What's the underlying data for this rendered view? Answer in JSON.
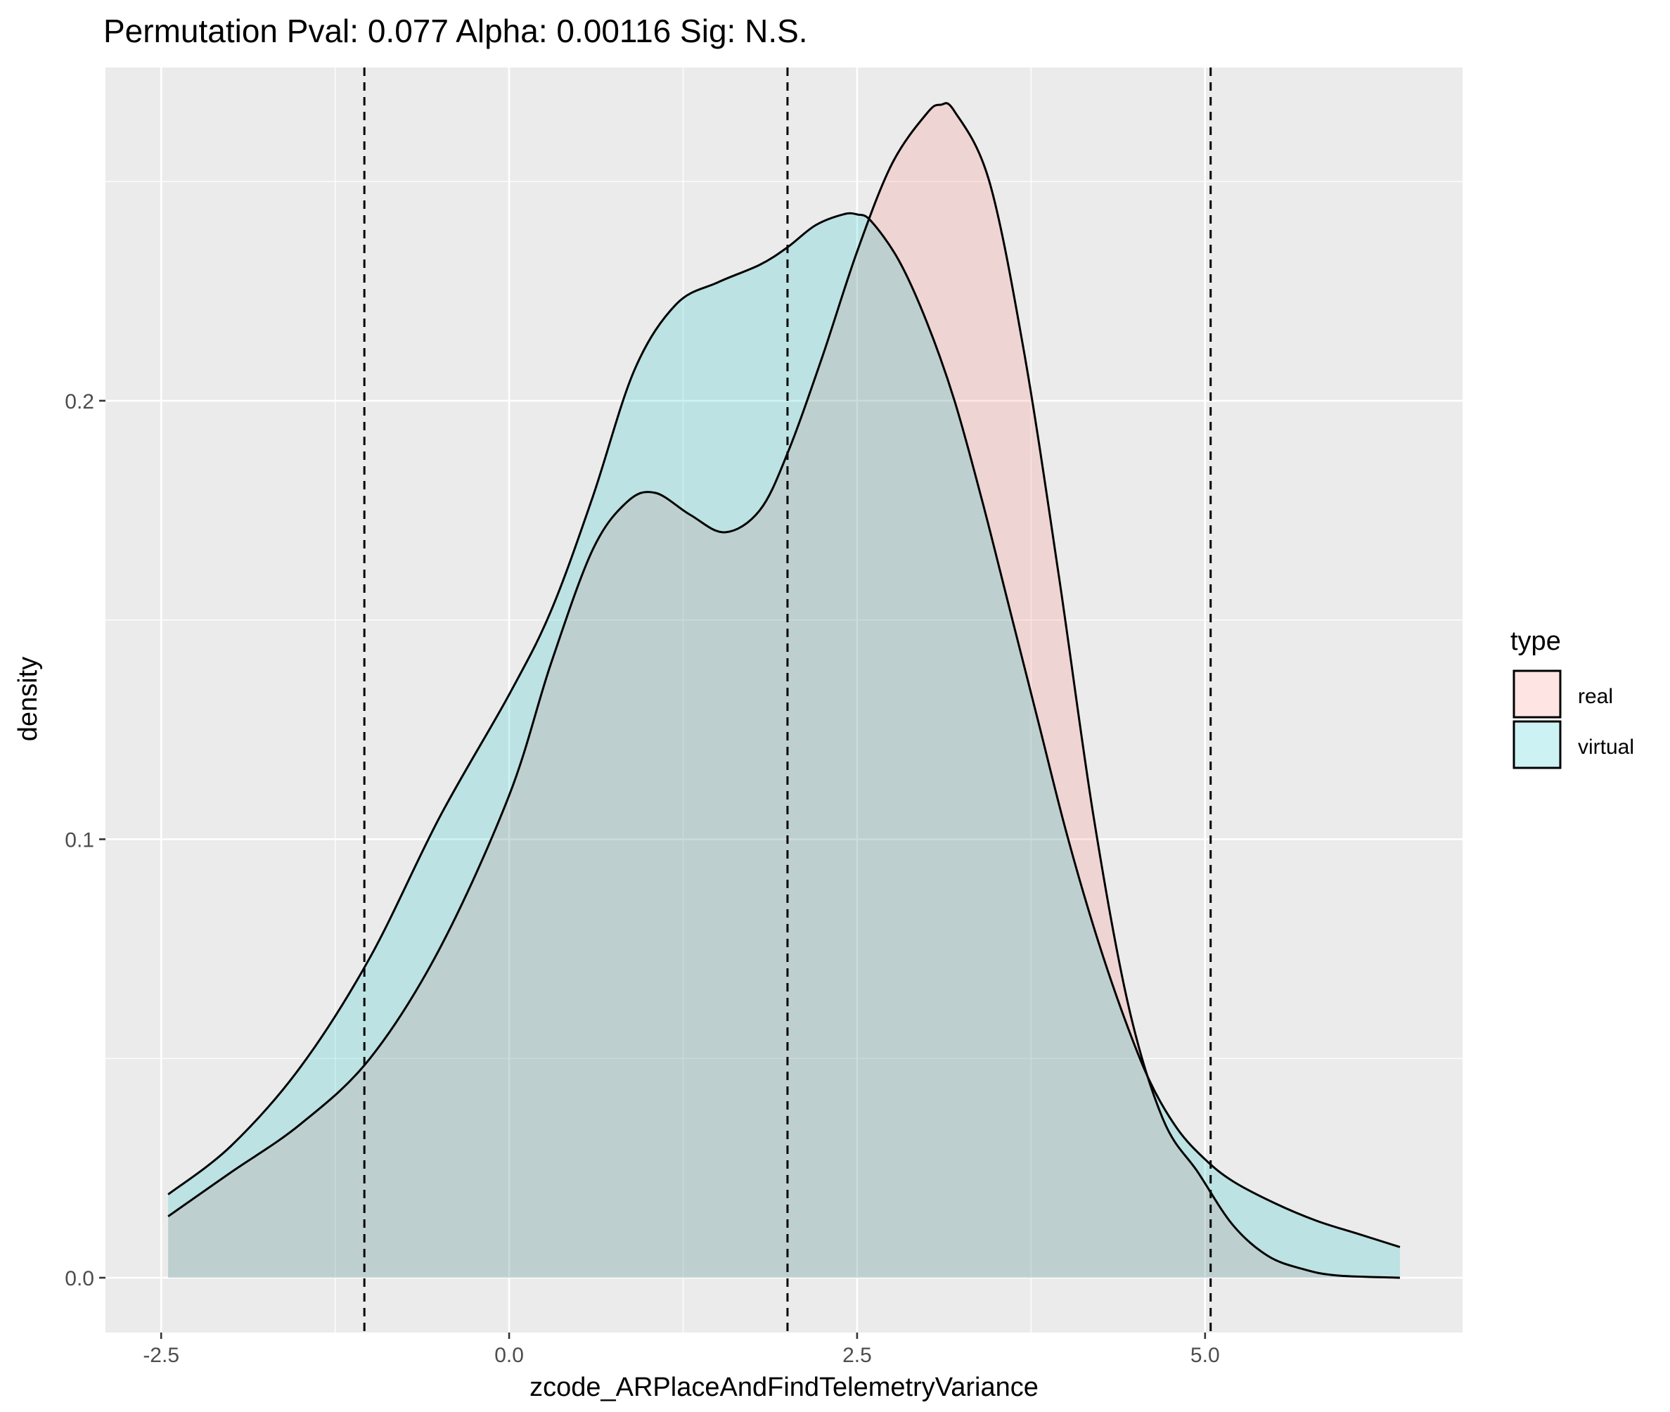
{
  "chart_data": {
    "type": "area",
    "title": "Permutation Pval: 0.077 Alpha: 0.00116 Sig: N.S.",
    "xlabel": "zcode_ARPlaceAndFindTelemetryVariance",
    "ylabel": "density",
    "xlim": [
      -2.9,
      6.85
    ],
    "ylim": [
      -0.0125,
      0.276
    ],
    "x_ticks": [
      -2.5,
      0.0,
      2.5,
      5.0
    ],
    "x_tick_labels": [
      "-2.5",
      "0.0",
      "2.5",
      "5.0"
    ],
    "y_ticks": [
      0.0,
      0.1,
      0.2
    ],
    "y_tick_labels": [
      "0.0",
      "0.1",
      "0.2"
    ],
    "x_minor_grid": [
      -1.25,
      1.25,
      3.75
    ],
    "y_minor_grid": [
      0.05,
      0.15,
      0.25
    ],
    "grid": true,
    "legend": {
      "title": "type",
      "placement": "right",
      "entries": [
        "real",
        "virtual"
      ]
    },
    "vlines": [
      -1.04,
      2.0,
      5.04
    ],
    "series": [
      {
        "name": "real",
        "fill": "#F8766D",
        "x": [
          -2.45,
          -2.0,
          -1.5,
          -1.0,
          -0.5,
          0.0,
          0.3,
          0.6,
          0.85,
          1.05,
          1.3,
          1.55,
          1.8,
          2.0,
          2.25,
          2.5,
          2.75,
          3.0,
          3.1,
          3.2,
          3.45,
          3.7,
          3.95,
          4.2,
          4.45,
          4.7,
          4.95,
          5.2,
          5.45,
          5.7,
          5.95,
          6.4
        ],
        "y": [
          0.014,
          0.024,
          0.035,
          0.05,
          0.075,
          0.11,
          0.14,
          0.166,
          0.177,
          0.179,
          0.174,
          0.17,
          0.175,
          0.188,
          0.21,
          0.234,
          0.254,
          0.2655,
          0.2675,
          0.266,
          0.25,
          0.211,
          0.16,
          0.105,
          0.062,
          0.036,
          0.024,
          0.012,
          0.005,
          0.002,
          0.0005,
          0.0
        ]
      },
      {
        "name": "virtual",
        "fill": "#00BFC4",
        "x": [
          -2.45,
          -2.0,
          -1.5,
          -1.0,
          -0.5,
          0.0,
          0.3,
          0.6,
          0.9,
          1.2,
          1.5,
          1.8,
          2.0,
          2.2,
          2.4,
          2.5,
          2.6,
          2.8,
          3.0,
          3.2,
          3.4,
          3.6,
          3.8,
          4.0,
          4.2,
          4.4,
          4.6,
          4.8,
          5.0,
          5.2,
          5.5,
          5.8,
          6.1,
          6.4
        ],
        "y": [
          0.019,
          0.03,
          0.048,
          0.073,
          0.105,
          0.133,
          0.152,
          0.178,
          0.207,
          0.222,
          0.227,
          0.231,
          0.235,
          0.24,
          0.2425,
          0.2425,
          0.241,
          0.232,
          0.218,
          0.2,
          0.177,
          0.152,
          0.127,
          0.102,
          0.08,
          0.061,
          0.045,
          0.034,
          0.027,
          0.022,
          0.017,
          0.013,
          0.01,
          0.007
        ]
      }
    ]
  }
}
